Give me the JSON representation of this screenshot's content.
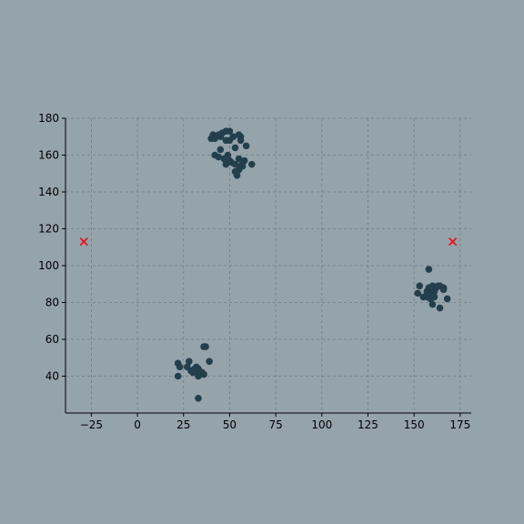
{
  "chart_data": {
    "type": "scatter",
    "title": "",
    "xlabel": "",
    "ylabel": "",
    "xlim": [
      -39,
      181
    ],
    "ylim": [
      20,
      180
    ],
    "xticks": [
      -25,
      0,
      25,
      50,
      75,
      100,
      125,
      150,
      175
    ],
    "yticks": [
      40,
      60,
      80,
      100,
      120,
      140,
      160,
      180
    ],
    "grid": true,
    "colors": {
      "background": "#95a3ab",
      "points": "#243f4c",
      "markers": "#e8141c"
    },
    "series": [
      {
        "marker": "circle",
        "points": [
          [
            40,
            169
          ],
          [
            41,
            171
          ],
          [
            42,
            169
          ],
          [
            44,
            171
          ],
          [
            46,
            172
          ],
          [
            48,
            173
          ],
          [
            50,
            173
          ],
          [
            52,
            170
          ],
          [
            55,
            171
          ],
          [
            56,
            170
          ],
          [
            45,
            170
          ],
          [
            48,
            168
          ],
          [
            50,
            168
          ],
          [
            56,
            168
          ],
          [
            45,
            163
          ],
          [
            53,
            164
          ],
          [
            59,
            165
          ],
          [
            42,
            160
          ],
          [
            44,
            159
          ],
          [
            47,
            158
          ],
          [
            49,
            160
          ],
          [
            50,
            157
          ],
          [
            55,
            158
          ],
          [
            57,
            156
          ],
          [
            58,
            157
          ],
          [
            48,
            155
          ],
          [
            53,
            155
          ],
          [
            56,
            154
          ],
          [
            55,
            152
          ],
          [
            53,
            151
          ],
          [
            57,
            154
          ],
          [
            62,
            155
          ],
          [
            54,
            149
          ],
          [
            47,
            158
          ],
          [
            51,
            156
          ],
          [
            22,
            47
          ],
          [
            23,
            45
          ],
          [
            22,
            40
          ],
          [
            27,
            45
          ],
          [
            28,
            48
          ],
          [
            29,
            43
          ],
          [
            31,
            44
          ],
          [
            30,
            42
          ],
          [
            32,
            45
          ],
          [
            33,
            44
          ],
          [
            32,
            42
          ],
          [
            34,
            41
          ],
          [
            35,
            42
          ],
          [
            36,
            41
          ],
          [
            33,
            40
          ],
          [
            36,
            56
          ],
          [
            37,
            56
          ],
          [
            39,
            48
          ],
          [
            33,
            28
          ],
          [
            158,
            98
          ],
          [
            153,
            89
          ],
          [
            152,
            85
          ],
          [
            155,
            83
          ],
          [
            157,
            86
          ],
          [
            158,
            88
          ],
          [
            159,
            87
          ],
          [
            160,
            89
          ],
          [
            161,
            86
          ],
          [
            162,
            88
          ],
          [
            163,
            89
          ],
          [
            164,
            89
          ],
          [
            166,
            88
          ],
          [
            166,
            87
          ],
          [
            157,
            83
          ],
          [
            159,
            82
          ],
          [
            161,
            83
          ],
          [
            160,
            84
          ],
          [
            168,
            82
          ],
          [
            160,
            79
          ],
          [
            164,
            77
          ]
        ]
      },
      {
        "marker": "x",
        "points": [
          [
            -29,
            113
          ],
          [
            171,
            113
          ]
        ]
      }
    ]
  }
}
